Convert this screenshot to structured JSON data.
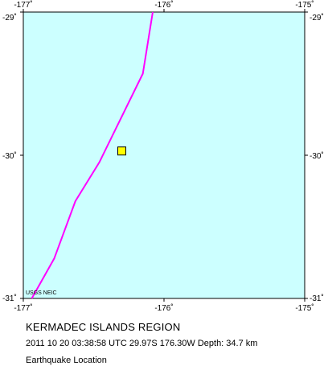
{
  "map": {
    "lon_range": [
      -177,
      -175
    ],
    "lat_range": [
      -31,
      -29
    ],
    "ocean_color": "#ccffff",
    "frame_color": "#000000",
    "tick_labels": {
      "top": [
        "-177˚",
        "-176˚",
        "-175˚"
      ],
      "bottom": [
        "-177˚",
        "-176˚",
        "-175˚"
      ],
      "left": [
        "-29˚",
        "-30˚",
        "-31˚"
      ],
      "right": [
        "-29˚",
        "-30˚",
        "-31˚"
      ]
    },
    "plate_boundary": {
      "color": "#ff00ff",
      "points": [
        [
          -176.08,
          -29.0
        ],
        [
          -176.15,
          -29.43
        ],
        [
          -176.46,
          -30.05
        ],
        [
          -176.63,
          -30.32
        ],
        [
          -176.78,
          -30.72
        ],
        [
          -176.94,
          -31.0
        ]
      ]
    },
    "epicenter": {
      "lon": -176.3,
      "lat": -29.97,
      "color": "#ffff00",
      "symbol": "square"
    },
    "credit": "USGS NEIC"
  },
  "caption": {
    "region": "KERMADEC ISLANDS REGION",
    "event_info": "2011 10 20 03:38:58 UTC 29.97S 176.30W Depth: 34.7 km",
    "map_type": "Earthquake Location"
  }
}
